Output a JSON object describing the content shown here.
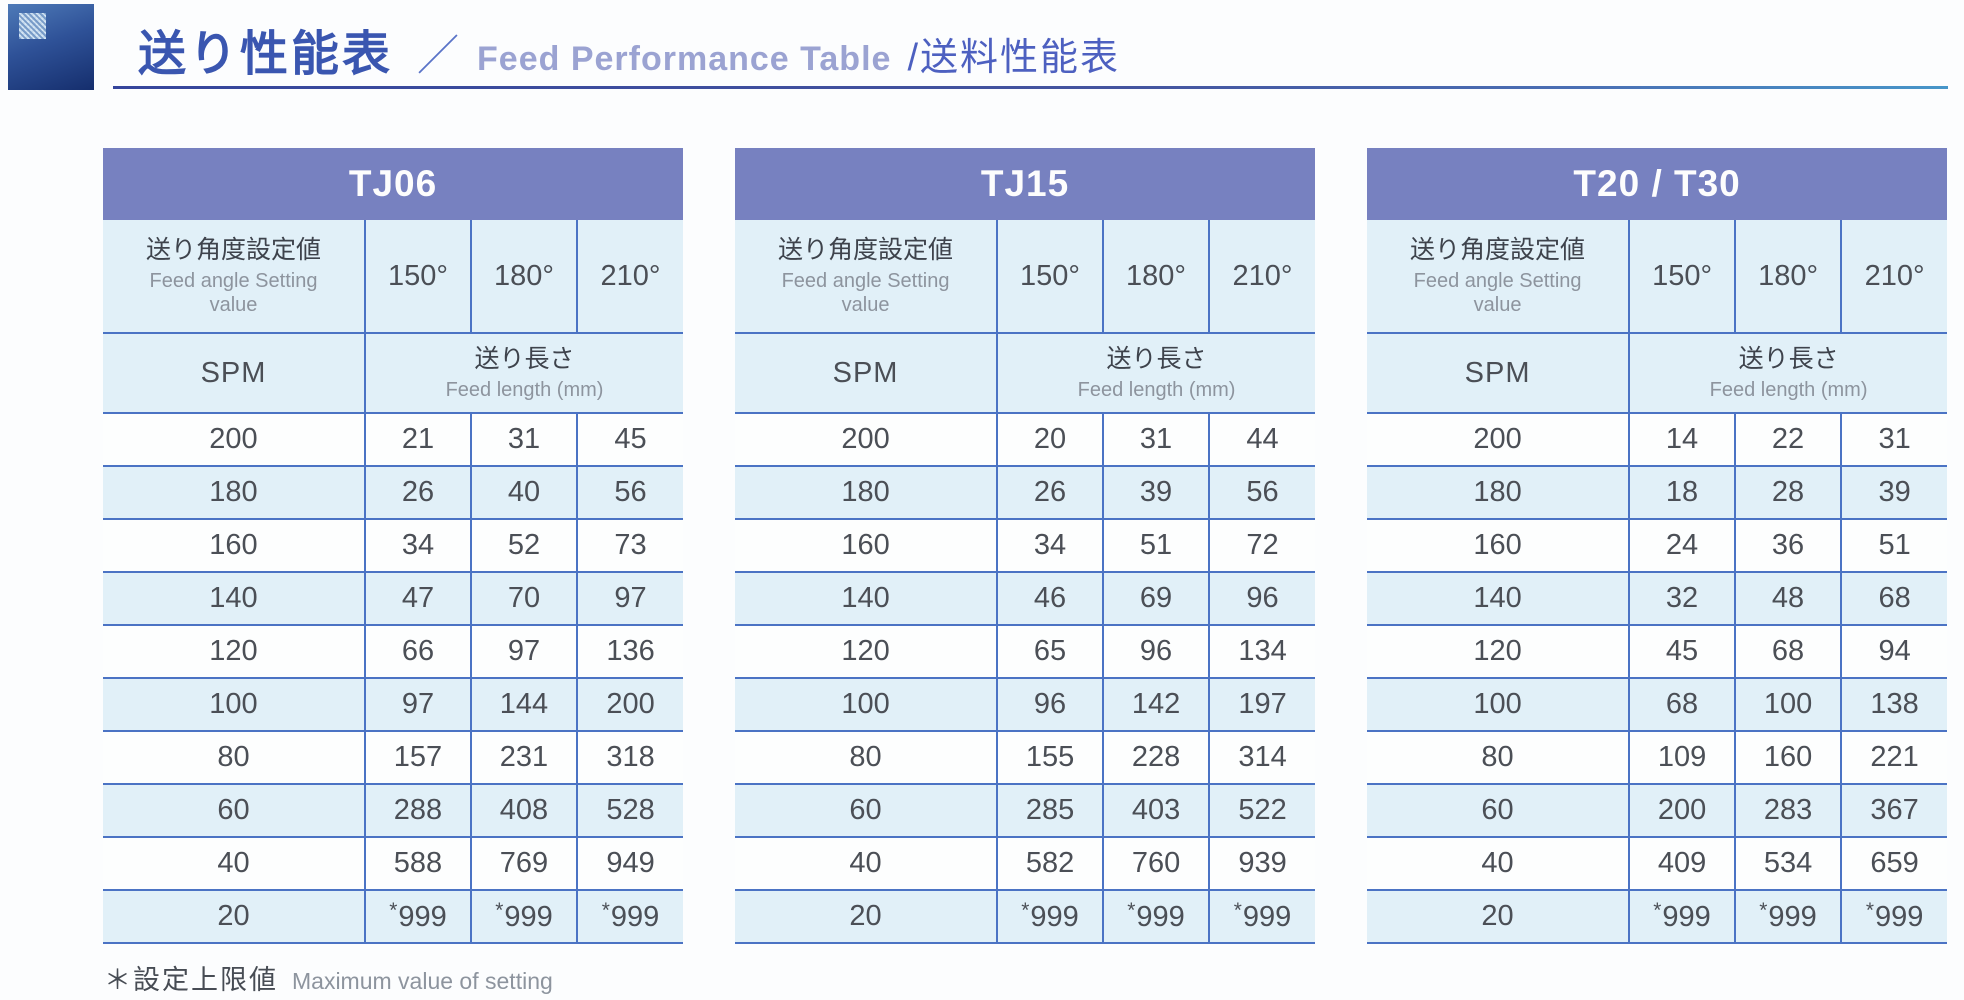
{
  "header": {
    "title_jp": "送り性能表",
    "separator": "／",
    "title_en": "Feed Performance Table",
    "title_alt": "/送料性能表"
  },
  "shared": {
    "feed_angle_label_jp": "送り角度設定値",
    "feed_angle_label_en": "Feed angle Setting value",
    "spm_label": "SPM",
    "feed_length_label_jp": "送り長さ",
    "feed_length_label_en": "Feed length (mm)",
    "angle_columns": [
      "150°",
      "180°",
      "210°"
    ]
  },
  "tables": [
    {
      "title": "TJ06",
      "rows": [
        {
          "spm": "200",
          "values": [
            "21",
            "31",
            "45"
          ]
        },
        {
          "spm": "180",
          "values": [
            "26",
            "40",
            "56"
          ]
        },
        {
          "spm": "160",
          "values": [
            "34",
            "52",
            "73"
          ]
        },
        {
          "spm": "140",
          "values": [
            "47",
            "70",
            "97"
          ]
        },
        {
          "spm": "120",
          "values": [
            "66",
            "97",
            "136"
          ]
        },
        {
          "spm": "100",
          "values": [
            "97",
            "144",
            "200"
          ]
        },
        {
          "spm": "80",
          "values": [
            "157",
            "231",
            "318"
          ]
        },
        {
          "spm": "60",
          "values": [
            "288",
            "408",
            "528"
          ]
        },
        {
          "spm": "40",
          "values": [
            "588",
            "769",
            "949"
          ]
        },
        {
          "spm": "20",
          "values": [
            "*999",
            "*999",
            "*999"
          ]
        }
      ]
    },
    {
      "title": "TJ15",
      "rows": [
        {
          "spm": "200",
          "values": [
            "20",
            "31",
            "44"
          ]
        },
        {
          "spm": "180",
          "values": [
            "26",
            "39",
            "56"
          ]
        },
        {
          "spm": "160",
          "values": [
            "34",
            "51",
            "72"
          ]
        },
        {
          "spm": "140",
          "values": [
            "46",
            "69",
            "96"
          ]
        },
        {
          "spm": "120",
          "values": [
            "65",
            "96",
            "134"
          ]
        },
        {
          "spm": "100",
          "values": [
            "96",
            "142",
            "197"
          ]
        },
        {
          "spm": "80",
          "values": [
            "155",
            "228",
            "314"
          ]
        },
        {
          "spm": "60",
          "values": [
            "285",
            "403",
            "522"
          ]
        },
        {
          "spm": "40",
          "values": [
            "582",
            "760",
            "939"
          ]
        },
        {
          "spm": "20",
          "values": [
            "*999",
            "*999",
            "*999"
          ]
        }
      ]
    },
    {
      "title": "T20 / T30",
      "rows": [
        {
          "spm": "200",
          "values": [
            "14",
            "22",
            "31"
          ]
        },
        {
          "spm": "180",
          "values": [
            "18",
            "28",
            "39"
          ]
        },
        {
          "spm": "160",
          "values": [
            "24",
            "36",
            "51"
          ]
        },
        {
          "spm": "140",
          "values": [
            "32",
            "48",
            "68"
          ]
        },
        {
          "spm": "120",
          "values": [
            "45",
            "68",
            "94"
          ]
        },
        {
          "spm": "100",
          "values": [
            "68",
            "100",
            "138"
          ]
        },
        {
          "spm": "80",
          "values": [
            "109",
            "160",
            "221"
          ]
        },
        {
          "spm": "60",
          "values": [
            "200",
            "283",
            "367"
          ]
        },
        {
          "spm": "40",
          "values": [
            "409",
            "534",
            "659"
          ]
        },
        {
          "spm": "20",
          "values": [
            "*999",
            "*999",
            "*999"
          ]
        }
      ]
    }
  ],
  "footnote": {
    "symbol": "＊",
    "jp": "設定上限値",
    "en": "Maximum value of setting"
  },
  "colors": {
    "band": "#7781c0",
    "row_alt": "#e1f0f8",
    "border": "#4b73c4",
    "title_jp": "#3a56b0",
    "title_en": "#9ba3d2",
    "title_alt": "#4d60c0"
  }
}
